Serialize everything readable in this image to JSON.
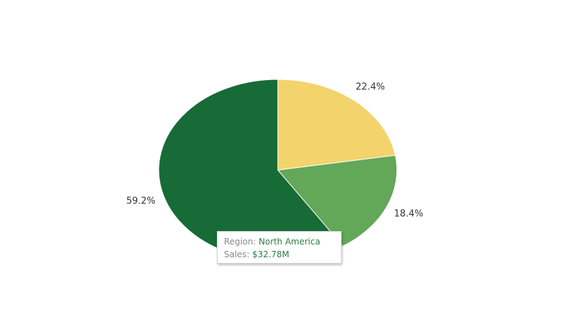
{
  "chart_data": {
    "type": "pie",
    "values": [
      22.4,
      18.4,
      59.2
    ],
    "value_labels": [
      "22.4%",
      "18.4%",
      "59.2%"
    ],
    "colors": [
      "#f3d36b",
      "#63a758",
      "#176b37"
    ],
    "start_angle": 0,
    "direction": "clockwise"
  },
  "tooltip": {
    "rows": [
      {
        "label": "Region:",
        "value": "North America"
      },
      {
        "label": "Sales:",
        "value": "$32.78M"
      }
    ]
  }
}
